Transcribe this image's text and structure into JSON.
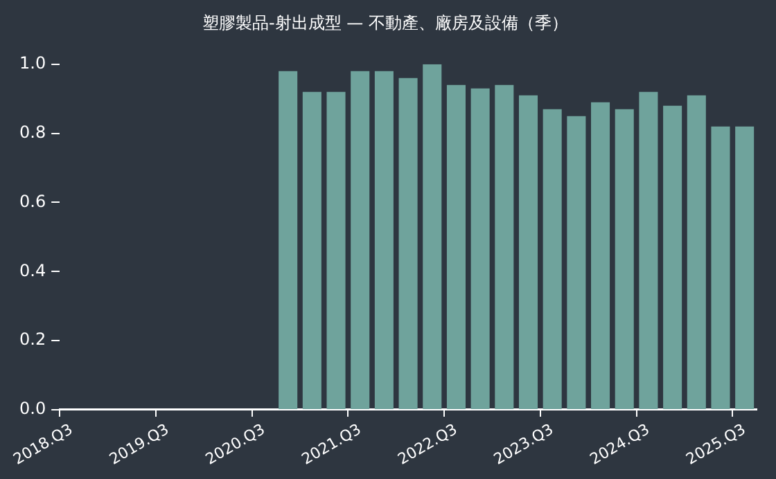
{
  "chart_data": {
    "type": "bar",
    "title": "塑膠製品-射出成型 — 不動產、廠房及設備（季）",
    "categories": [
      "2018.Q3",
      null,
      null,
      null,
      "2019.Q3",
      null,
      null,
      null,
      "2020.Q3",
      null,
      null,
      null,
      "2021.Q3",
      null,
      null,
      null,
      "2022.Q3",
      null,
      null,
      null,
      "2023.Q3",
      null,
      null,
      null,
      "2024.Q3",
      null,
      null,
      null,
      "2025.Q3"
    ],
    "values": [
      null,
      null,
      null,
      null,
      null,
      null,
      null,
      null,
      null,
      0.98,
      0.92,
      0.92,
      0.98,
      0.98,
      0.96,
      1.0,
      0.94,
      0.93,
      0.94,
      0.91,
      0.87,
      0.85,
      0.89,
      0.87,
      0.92,
      0.88,
      0.91,
      0.82,
      0.82
    ],
    "color": "#6fa39c",
    "ylim": [
      0,
      1
    ],
    "yticks": [
      {
        "value": 0,
        "label": "0.0"
      },
      {
        "value": 0.2,
        "label": "0.2"
      },
      {
        "value": 0.4,
        "label": "0.4"
      },
      {
        "value": 0.6,
        "label": "0.6"
      },
      {
        "value": 0.8,
        "label": "0.8"
      },
      {
        "value": 1,
        "label": "1.0"
      }
    ],
    "grid": false,
    "legend": false
  }
}
